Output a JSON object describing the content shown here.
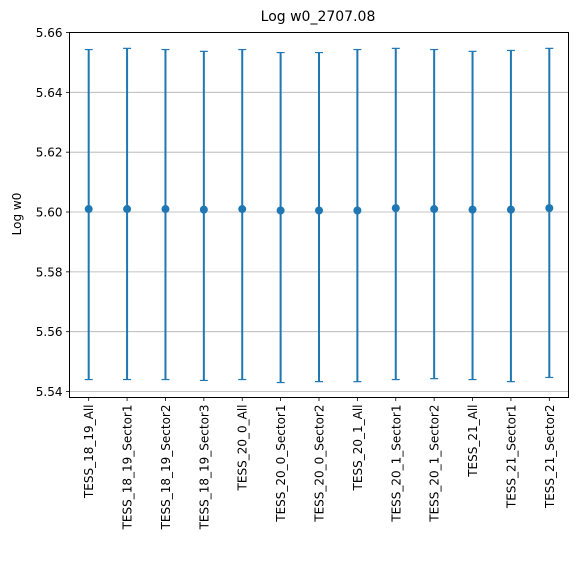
{
  "chart_data": {
    "type": "scatter",
    "title": "Log w0_2707.08",
    "xlabel": "",
    "ylabel": "Log w0",
    "ylim": [
      5.538,
      5.66
    ],
    "yticks": [
      5.54,
      5.56,
      5.58,
      5.6,
      5.62,
      5.64,
      5.66
    ],
    "ytick_labels": [
      "5.54",
      "5.56",
      "5.58",
      "5.60",
      "5.62",
      "5.64",
      "5.66"
    ],
    "categories": [
      "TESS_18_19_All",
      "TESS_18_19_Sector1",
      "TESS_18_19_Sector2",
      "TESS_18_19_Sector3",
      "TESS_20_0_All",
      "TESS_20_0_Sector1",
      "TESS_20_0_Sector2",
      "TESS_20_1_All",
      "TESS_20_1_Sector1",
      "TESS_20_1_Sector2",
      "TESS_21_All",
      "TESS_21_Sector1",
      "TESS_21_Sector2"
    ],
    "values": [
      5.601,
      5.601,
      5.601,
      5.6008,
      5.601,
      5.6005,
      5.6005,
      5.6005,
      5.6013,
      5.601,
      5.6008,
      5.6008,
      5.6013
    ],
    "err_low": [
      5.544,
      5.544,
      5.544,
      5.5437,
      5.544,
      5.543,
      5.5433,
      5.5433,
      5.544,
      5.5443,
      5.544,
      5.5433,
      5.5447
    ],
    "err_high": [
      5.6543,
      5.6547,
      5.6543,
      5.6537,
      5.6543,
      5.6533,
      5.6533,
      5.6543,
      5.6547,
      5.6543,
      5.6537,
      5.654,
      5.6547
    ],
    "grid": "horizontal",
    "color": "#1f77b4"
  }
}
